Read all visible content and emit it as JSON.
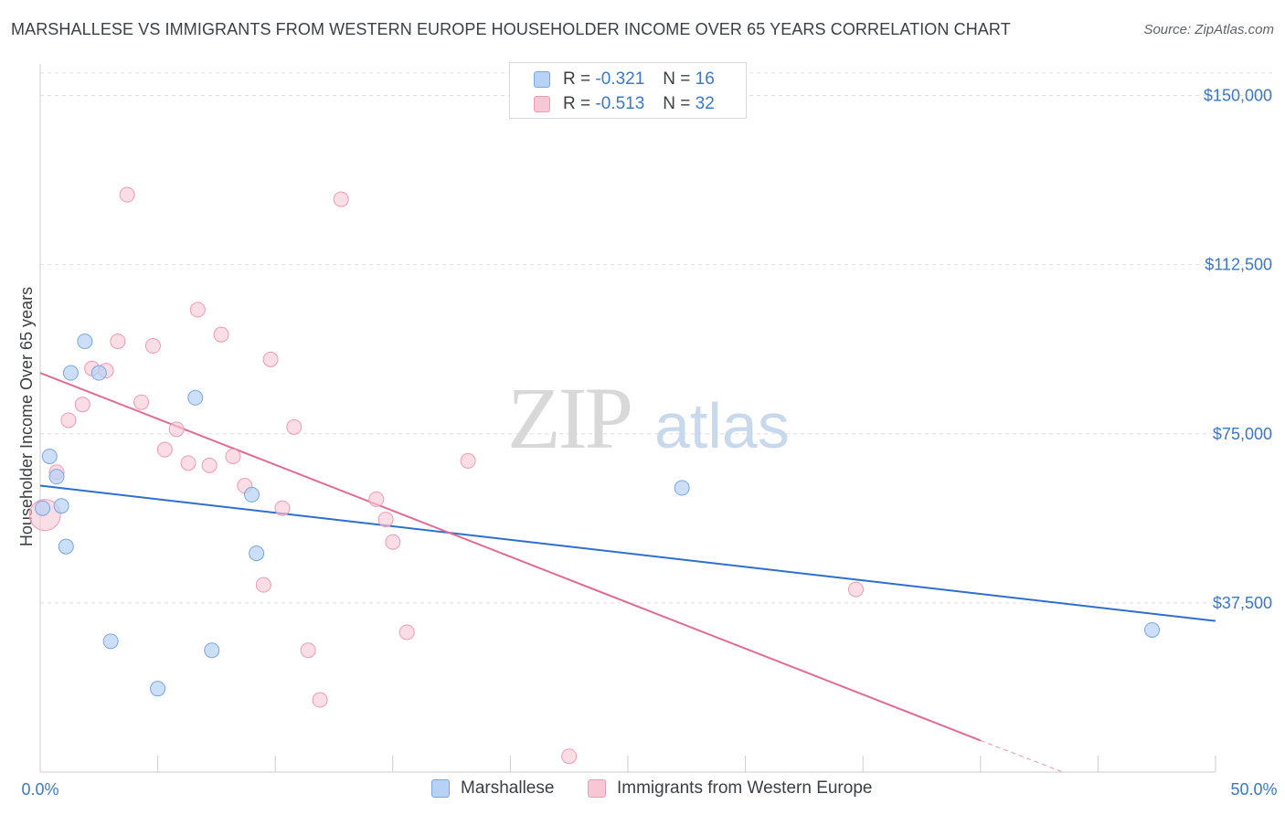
{
  "title": "MARSHALLESE VS IMMIGRANTS FROM WESTERN EUROPE HOUSEHOLDER INCOME OVER 65 YEARS CORRELATION CHART",
  "source": "Source: ZipAtlas.com",
  "watermark": {
    "zip": "ZIP",
    "atlas": "atlas"
  },
  "legend": {
    "rows": [
      {
        "r_label": "R =",
        "r_value": "-0.321",
        "n_label": "N =",
        "n_value": "16"
      },
      {
        "r_label": "R =",
        "r_value": "-0.513",
        "n_label": "N =",
        "n_value": "32"
      }
    ]
  },
  "bottom_legend": {
    "series1": "Marshallese",
    "series2": "Immigrants from Western Europe"
  },
  "colors": {
    "blue_fill": "#b7d2f5",
    "blue_stroke": "#7aa6de",
    "blue_line": "#2f6fcc",
    "pink_fill": "#f8c7d6",
    "pink_stroke": "#ef9ab5",
    "pink_line": "#e06b96",
    "tick_text": "#3a78c9",
    "grid": "#e0e0e0"
  },
  "chart_data": {
    "type": "scatter",
    "xlabel": "",
    "ylabel": "Householder Income Over 65 years",
    "xlim": [
      0,
      50
    ],
    "ylim": [
      0,
      157000
    ],
    "x_tick_labels": [
      "0.0%",
      "50.0%"
    ],
    "y_ticks": [
      37500,
      75000,
      112500,
      150000
    ],
    "y_tick_labels": [
      "$37,500",
      "$75,000",
      "$112,500",
      "$150,000"
    ],
    "grid": "dashed horizontal",
    "series": [
      {
        "name": "Marshallese",
        "points": [
          {
            "x": 0.1,
            "y": 58500
          },
          {
            "x": 0.4,
            "y": 70000
          },
          {
            "x": 0.7,
            "y": 65500
          },
          {
            "x": 0.9,
            "y": 59000
          },
          {
            "x": 1.1,
            "y": 50000
          },
          {
            "x": 1.3,
            "y": 88500
          },
          {
            "x": 1.9,
            "y": 95500
          },
          {
            "x": 2.5,
            "y": 88500
          },
          {
            "x": 3.0,
            "y": 29000
          },
          {
            "x": 5.0,
            "y": 18500
          },
          {
            "x": 6.6,
            "y": 83000
          },
          {
            "x": 7.3,
            "y": 27000
          },
          {
            "x": 9.0,
            "y": 61500
          },
          {
            "x": 9.2,
            "y": 48500
          },
          {
            "x": 27.3,
            "y": 63000
          },
          {
            "x": 47.3,
            "y": 31500
          }
        ],
        "trend": {
          "x": [
            0,
            50
          ],
          "y": [
            63500,
            33500
          ]
        }
      },
      {
        "name": "Immigrants from Western Europe",
        "points": [
          {
            "x": 0.2,
            "y": 57000
          },
          {
            "x": 0.7,
            "y": 66500
          },
          {
            "x": 1.2,
            "y": 78000
          },
          {
            "x": 1.8,
            "y": 81500
          },
          {
            "x": 2.2,
            "y": 89500
          },
          {
            "x": 2.8,
            "y": 89000
          },
          {
            "x": 3.3,
            "y": 95500
          },
          {
            "x": 3.7,
            "y": 128000
          },
          {
            "x": 4.3,
            "y": 82000
          },
          {
            "x": 4.8,
            "y": 94500
          },
          {
            "x": 5.3,
            "y": 71500
          },
          {
            "x": 5.8,
            "y": 76000
          },
          {
            "x": 6.3,
            "y": 68500
          },
          {
            "x": 6.7,
            "y": 102500
          },
          {
            "x": 7.2,
            "y": 68000
          },
          {
            "x": 7.7,
            "y": 97000
          },
          {
            "x": 8.2,
            "y": 70000
          },
          {
            "x": 8.7,
            "y": 63500
          },
          {
            "x": 9.5,
            "y": 41500
          },
          {
            "x": 9.8,
            "y": 91500
          },
          {
            "x": 10.3,
            "y": 58500
          },
          {
            "x": 10.8,
            "y": 76500
          },
          {
            "x": 11.4,
            "y": 27000
          },
          {
            "x": 11.9,
            "y": 16000
          },
          {
            "x": 12.8,
            "y": 127000
          },
          {
            "x": 14.3,
            "y": 60500
          },
          {
            "x": 14.7,
            "y": 56000
          },
          {
            "x": 15.0,
            "y": 51000
          },
          {
            "x": 15.6,
            "y": 31000
          },
          {
            "x": 18.2,
            "y": 69000
          },
          {
            "x": 22.5,
            "y": 3500
          },
          {
            "x": 34.7,
            "y": 40500
          }
        ],
        "trend": {
          "x": [
            0,
            40
          ],
          "y": [
            88500,
            7000
          ]
        },
        "trend_dashed": {
          "x": [
            40,
            43.5
          ],
          "y": [
            7000,
            0
          ]
        }
      }
    ]
  }
}
